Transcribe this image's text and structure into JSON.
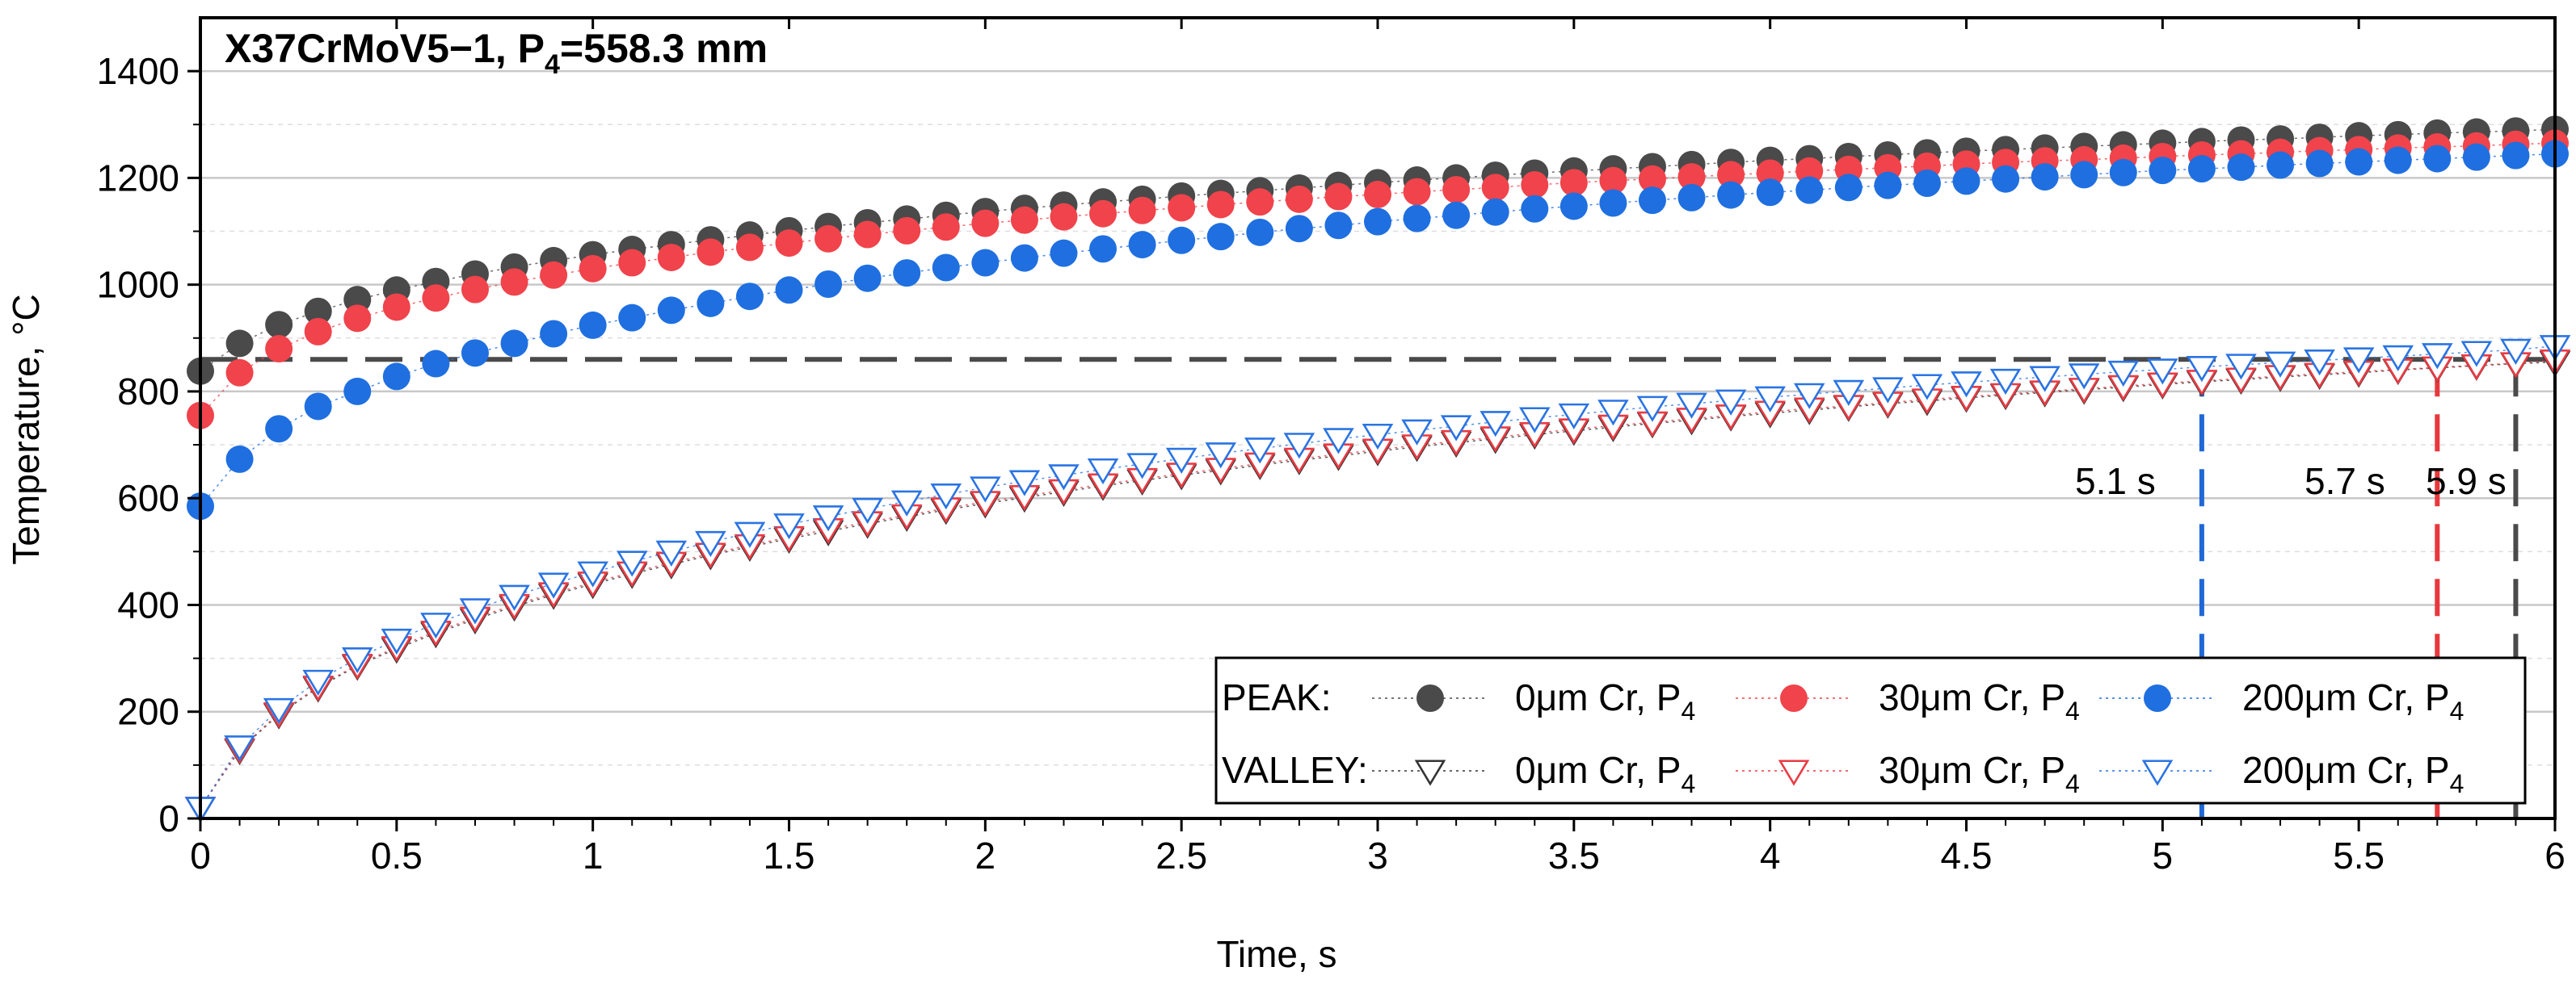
{
  "chart_data": {
    "type": "scatter",
    "title_main": "X37CrMoV5−1, P",
    "title_sub": "4",
    "title_end": "=558.3 mm",
    "xlabel": "Time, s",
    "ylabel": "Temperature, °C",
    "xlim": [
      0,
      6
    ],
    "ylim": [
      0,
      1500
    ],
    "x_ticks": [
      "0",
      "0.5",
      "1",
      "1.5",
      "2",
      "2.5",
      "3",
      "3.5",
      "4",
      "4.5",
      "5",
      "5.5",
      "6"
    ],
    "y_ticks": [
      "0",
      "200",
      "400",
      "600",
      "800",
      "1000",
      "1200",
      "1400"
    ],
    "x_tick_values": [
      0,
      0.5,
      1,
      1.5,
      2,
      2.5,
      3,
      3.5,
      4,
      4.5,
      5,
      5.5,
      6
    ],
    "y_tick_values": [
      0,
      200,
      400,
      600,
      800,
      1000,
      1200,
      1400
    ],
    "grid": true,
    "threshold_value": 860,
    "threshold_color": "#4a4a4a",
    "legend": {
      "peak_label": "PEAK:",
      "valley_label": "VALLEY:",
      "entries": [
        {
          "text": "0μm Cr, P",
          "sub": "4"
        },
        {
          "text": "30μm Cr, P",
          "sub": "4"
        },
        {
          "text": "200μm Cr, P",
          "sub": "4"
        }
      ]
    },
    "annotations": [
      {
        "label": "5.1 s",
        "x": 5.1,
        "color": "#1f68d6"
      },
      {
        "label": "5.7 s",
        "x": 5.7,
        "color": "#e8383d"
      },
      {
        "label": "5.9 s",
        "x": 5.9,
        "color": "#4a4a4a"
      }
    ],
    "x": [
      0,
      0.1,
      0.2,
      0.3,
      0.4,
      0.5,
      0.6,
      0.7,
      0.8,
      0.9,
      1.0,
      1.1,
      1.2,
      1.3,
      1.4,
      1.5,
      1.6,
      1.7,
      1.8,
      1.9,
      2.0,
      2.1,
      2.2,
      2.3,
      2.4,
      2.5,
      2.6,
      2.7,
      2.8,
      2.9,
      3.0,
      3.1,
      3.2,
      3.3,
      3.4,
      3.5,
      3.6,
      3.7,
      3.8,
      3.9,
      4.0,
      4.1,
      4.2,
      4.3,
      4.4,
      4.5,
      4.6,
      4.7,
      4.8,
      4.9,
      5.0,
      5.1,
      5.2,
      5.3,
      5.4,
      5.5,
      5.6,
      5.7,
      5.8,
      5.9,
      6.0
    ],
    "series": [
      {
        "name": "PEAK 0μm Cr, P4",
        "marker": "circle",
        "color": "#4a4a4a",
        "values": [
          838,
          890,
          925,
          950,
          972,
          990,
          1006,
          1020,
          1033,
          1045,
          1056,
          1066,
          1075,
          1084,
          1093,
          1101,
          1109,
          1116,
          1123,
          1130,
          1137,
          1143,
          1149,
          1155,
          1160,
          1166,
          1171,
          1176,
          1181,
          1186,
          1191,
          1196,
          1200,
          1205,
          1209,
          1213,
          1217,
          1221,
          1225,
          1229,
          1233,
          1236,
          1240,
          1243,
          1247,
          1250,
          1253,
          1256,
          1259,
          1262,
          1265,
          1268,
          1271,
          1273,
          1276,
          1279,
          1281,
          1284,
          1286,
          1288,
          1291
        ]
      },
      {
        "name": "PEAK 30μm Cr, P4",
        "marker": "circle",
        "color": "#f0434b",
        "values": [
          755,
          835,
          880,
          912,
          937,
          958,
          975,
          991,
          1005,
          1018,
          1030,
          1041,
          1051,
          1061,
          1070,
          1078,
          1086,
          1094,
          1101,
          1108,
          1115,
          1121,
          1127,
          1133,
          1139,
          1144,
          1150,
          1155,
          1160,
          1165,
          1169,
          1174,
          1178,
          1182,
          1187,
          1191,
          1195,
          1198,
          1202,
          1206,
          1209,
          1213,
          1216,
          1219,
          1222,
          1226,
          1229,
          1232,
          1234,
          1237,
          1240,
          1243,
          1245,
          1248,
          1251,
          1253,
          1256,
          1258,
          1260,
          1263,
          1265
        ]
      },
      {
        "name": "PEAK 200μm Cr, P4",
        "marker": "circle",
        "color": "#1f6fe0",
        "values": [
          585,
          673,
          730,
          772,
          800,
          828,
          852,
          872,
          890,
          908,
          924,
          938,
          952,
          965,
          978,
          990,
          1001,
          1012,
          1022,
          1032,
          1041,
          1050,
          1059,
          1067,
          1075,
          1083,
          1090,
          1098,
          1105,
          1111,
          1118,
          1124,
          1130,
          1136,
          1142,
          1147,
          1153,
          1158,
          1163,
          1168,
          1173,
          1177,
          1182,
          1186,
          1190,
          1194,
          1198,
          1202,
          1206,
          1210,
          1214,
          1217,
          1220,
          1224,
          1227,
          1230,
          1233,
          1236,
          1239,
          1242,
          1245
        ]
      },
      {
        "name": "VALLEY 0μm Cr, P4",
        "marker": "triangle-down",
        "color": "#333333",
        "values": [
          20,
          128,
          195,
          245,
          286,
          318,
          347,
          373,
          397,
          419,
          439,
          458,
          476,
          493,
          509,
          524,
          538,
          552,
          565,
          578,
          590,
          601,
          612,
          623,
          633,
          643,
          652,
          662,
          671,
          679,
          688,
          696,
          704,
          711,
          719,
          726,
          733,
          740,
          746,
          753,
          759,
          765,
          771,
          777,
          782,
          788,
          793,
          798,
          803,
          808,
          813,
          818,
          822,
          827,
          831,
          835,
          840,
          844,
          848,
          852,
          855
        ]
      },
      {
        "name": "VALLEY 30μm Cr, P4",
        "marker": "triangle-down",
        "color": "#ea3b43",
        "values": [
          20,
          130,
          197,
          247,
          288,
          321,
          350,
          376,
          400,
          422,
          442,
          461,
          479,
          496,
          512,
          527,
          542,
          555,
          568,
          581,
          593,
          604,
          615,
          626,
          636,
          646,
          655,
          665,
          674,
          682,
          691,
          699,
          707,
          714,
          722,
          729,
          736,
          742,
          749,
          755,
          762,
          768,
          773,
          779,
          785,
          790,
          795,
          800,
          805,
          810,
          815,
          820,
          824,
          829,
          833,
          837,
          841,
          845,
          849,
          853,
          858
        ]
      },
      {
        "name": "VALLEY 200μm Cr, P4",
        "marker": "triangle-down",
        "color": "#2a74e3",
        "values": [
          20,
          135,
          205,
          258,
          300,
          335,
          365,
          392,
          417,
          440,
          461,
          481,
          500,
          518,
          535,
          551,
          566,
          580,
          594,
          607,
          620,
          632,
          643,
          654,
          664,
          674,
          684,
          693,
          702,
          711,
          719,
          727,
          735,
          743,
          750,
          757,
          764,
          771,
          777,
          783,
          789,
          795,
          801,
          806,
          812,
          817,
          822,
          827,
          832,
          837,
          841,
          846,
          850,
          854,
          858,
          862,
          866,
          870,
          874,
          878,
          885
        ]
      }
    ]
  }
}
